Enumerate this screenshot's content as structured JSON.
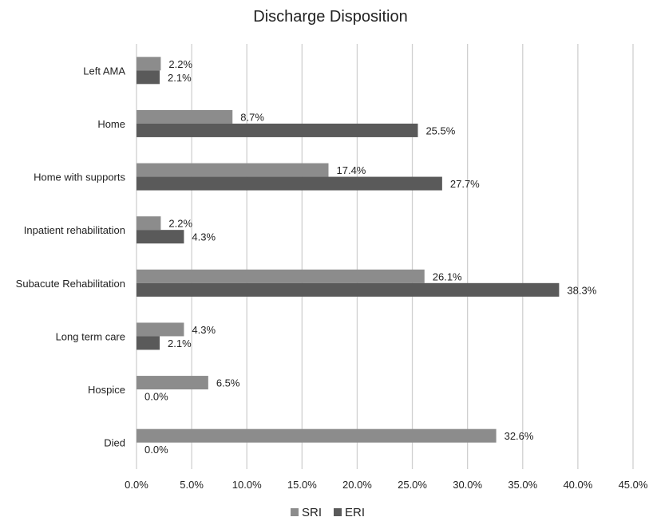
{
  "chart_data": {
    "type": "bar",
    "orientation": "horizontal",
    "title": "Discharge Disposition",
    "categories": [
      "Left AMA",
      "Home",
      "Home with supports",
      "Inpatient rehabilitation",
      "Subacute Rehabilitation",
      "Long term care",
      "Hospice",
      "Died"
    ],
    "series": [
      {
        "name": "SRI",
        "color": "#8c8c8c",
        "values": [
          2.2,
          8.7,
          17.4,
          2.2,
          26.1,
          4.3,
          6.5,
          32.6
        ],
        "labels": [
          "2.2%",
          "8.7%",
          "17.4%",
          "2.2%",
          "26.1%",
          "4.3%",
          "6.5%",
          "32.6%"
        ]
      },
      {
        "name": "ERI",
        "color": "#5a5a5a",
        "values": [
          2.1,
          25.5,
          27.7,
          4.3,
          38.3,
          2.1,
          0.0,
          0.0
        ],
        "labels": [
          "2.1%",
          "25.5%",
          "27.7%",
          "4.3%",
          "38.3%",
          "2.1%",
          "0.0%",
          "0.0%"
        ]
      }
    ],
    "xlim": [
      0,
      45
    ],
    "xticks": [
      "0.0%",
      "5.0%",
      "10.0%",
      "15.0%",
      "20.0%",
      "25.0%",
      "30.0%",
      "35.0%",
      "40.0%",
      "45.0%"
    ],
    "grid": true,
    "legend_position": "bottom"
  }
}
